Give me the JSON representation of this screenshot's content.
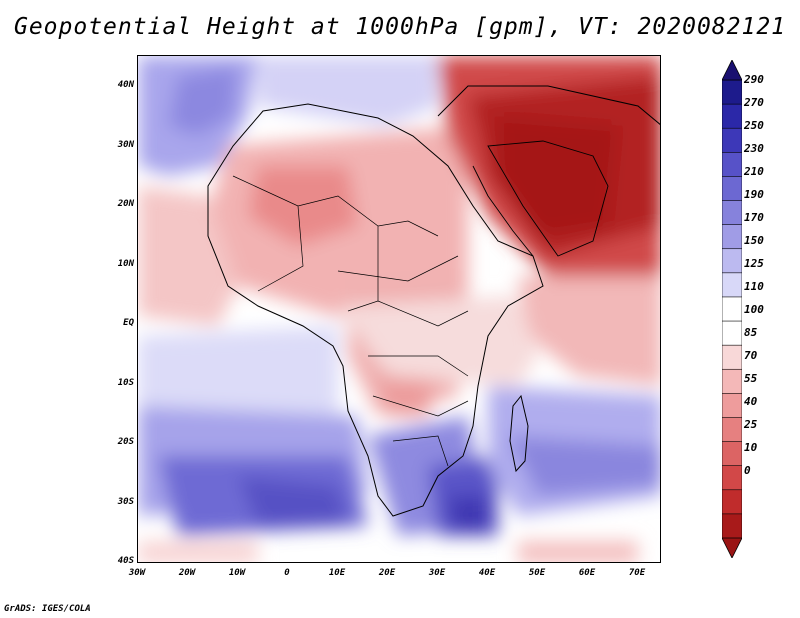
{
  "title": "Geopotential Height at 1000hPa [gpm], VT: 2020082121",
  "credit": "GrADS: IGES/COLA",
  "map": {
    "region": "Africa and Arabian Peninsula",
    "variable": "Geopotential height at 1000 hPa",
    "units": "gpm",
    "valid_time": "2020082121",
    "lat_labels": [
      "40N",
      "30N",
      "20N",
      "10N",
      "EQ",
      "10S",
      "20S",
      "30S",
      "40S"
    ],
    "lon_labels": [
      "30W",
      "20W",
      "10W",
      "0",
      "10E",
      "20E",
      "30E",
      "40E",
      "50E",
      "60E",
      "70E"
    ]
  },
  "colorbar": {
    "levels": [
      "290",
      "270",
      "250",
      "230",
      "210",
      "190",
      "170",
      "150",
      "125",
      "110",
      "100",
      "85",
      "70",
      "55",
      "40",
      "25",
      "10",
      "0"
    ],
    "colors": [
      "#1d1b8c",
      "#2b28a8",
      "#3d38b8",
      "#5752c8",
      "#6c68d2",
      "#8682dc",
      "#a09ce6",
      "#bcbaf0",
      "#d8d8f8",
      "#ffffff",
      "#ffffff",
      "#f8d8d8",
      "#f4b8b8",
      "#ee9c9c",
      "#e68080",
      "#dc6464",
      "#d24848",
      "#c02c2c",
      "#a81a1a"
    ],
    "top_arrow_color": "#1a1070",
    "bottom_arrow_color": "#9a1414"
  }
}
